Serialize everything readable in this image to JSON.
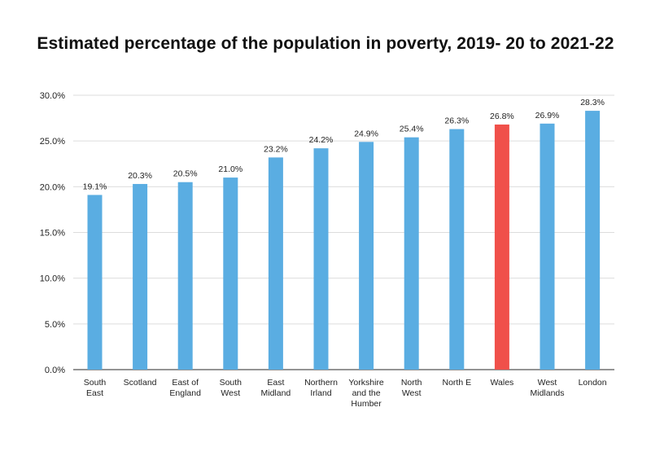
{
  "chart_data": {
    "type": "bar",
    "title": "Estimated percentage of the population in poverty, 2019- 20 to 2021-22",
    "xlabel": "",
    "ylabel": "",
    "ylim": [
      0,
      30
    ],
    "yticks": [
      "0.0%",
      "5.0%",
      "10.0%",
      "15.0%",
      "20.0%",
      "25.0%",
      "30.0%"
    ],
    "ytick_values": [
      0,
      5,
      10,
      15,
      20,
      25,
      30
    ],
    "grid": true,
    "categories": [
      [
        "South",
        "East"
      ],
      [
        "Scotland"
      ],
      [
        "East of",
        "England"
      ],
      [
        "South",
        "West"
      ],
      [
        "East",
        "Midland"
      ],
      [
        "Northern",
        "Irland"
      ],
      [
        "Yorkshire",
        "and the",
        "Humber"
      ],
      [
        "North",
        "West"
      ],
      [
        "North E"
      ],
      [
        "Wales"
      ],
      [
        "West",
        "Midlands"
      ],
      [
        "London"
      ]
    ],
    "values": [
      19.1,
      20.3,
      20.5,
      21.0,
      23.2,
      24.2,
      24.9,
      25.4,
      26.3,
      26.8,
      26.9,
      28.3
    ],
    "value_labels": [
      "19.1%",
      "20.3%",
      "20.5%",
      "21.0%",
      "23.2%",
      "24.2%",
      "24.9%",
      "25.4%",
      "26.3%",
      "26.8%",
      "26.9%",
      "28.3%"
    ],
    "highlight_index": 9,
    "colors": {
      "bar": "#5aade2",
      "highlight": "#f0504a",
      "grid": "#dddddd",
      "axis": "#555555"
    }
  }
}
